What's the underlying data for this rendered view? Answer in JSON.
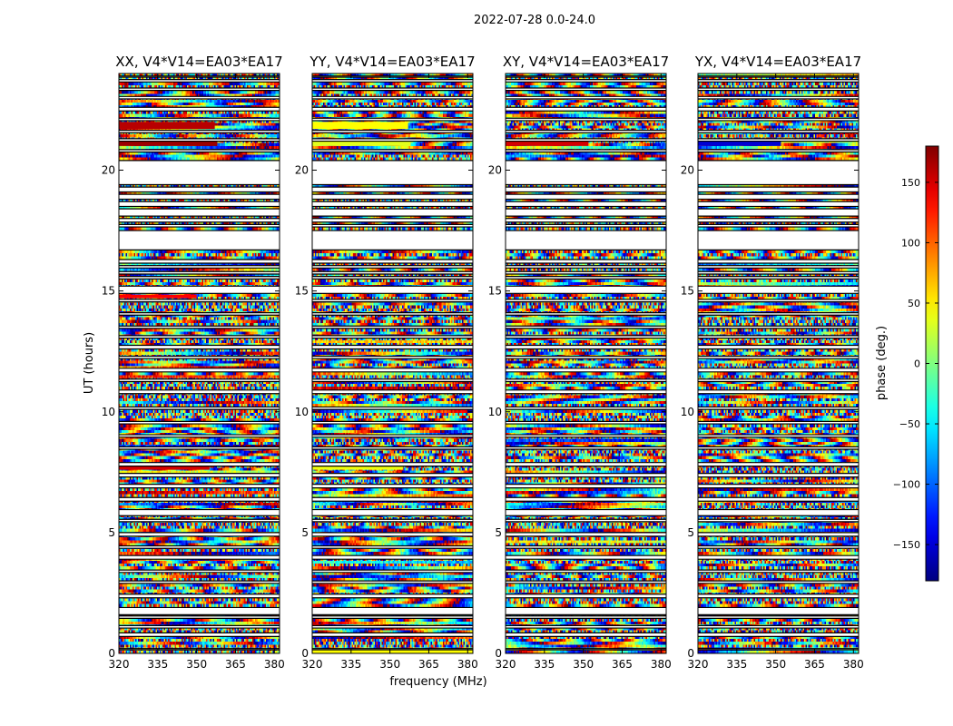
{
  "figure": {
    "suptitle": "2022-07-28 0.0-24.0",
    "ylabel": "UT (hours)",
    "xlabel": "frequency (MHz)",
    "colorbar_label": "phase (deg.)"
  },
  "chart_data": {
    "type": "heatmap",
    "colormap": "jet",
    "vrange": [
      -180,
      180
    ],
    "colorbar_ticks": [
      -150,
      -100,
      -50,
      0,
      50,
      100,
      150
    ],
    "x_range": [
      320,
      382
    ],
    "x_ticks": [
      320,
      335,
      350,
      365,
      380
    ],
    "y_range": [
      0,
      24
    ],
    "y_ticks": [
      0,
      5,
      10,
      15,
      20
    ],
    "flagged_intervals_hours": [
      [
        0.15,
        0.2
      ],
      [
        0.7,
        0.85
      ],
      [
        1.05,
        1.15
      ],
      [
        1.45,
        1.55
      ],
      [
        1.6,
        1.9
      ],
      [
        2.3,
        2.45
      ],
      [
        2.9,
        3.0
      ],
      [
        3.35,
        3.45
      ],
      [
        3.9,
        4.05
      ],
      [
        4.35,
        4.45
      ],
      [
        4.85,
        5.0
      ],
      [
        5.45,
        5.55
      ],
      [
        5.7,
        5.95
      ],
      [
        6.3,
        6.45
      ],
      [
        6.85,
        7.0
      ],
      [
        7.3,
        7.45
      ],
      [
        7.75,
        7.9
      ],
      [
        8.45,
        8.55
      ],
      [
        8.95,
        9.05
      ],
      [
        9.5,
        9.6
      ],
      [
        10.1,
        10.2
      ],
      [
        10.75,
        10.9
      ],
      [
        11.25,
        11.35
      ],
      [
        11.65,
        11.8
      ],
      [
        12.2,
        12.3
      ],
      [
        12.6,
        12.75
      ],
      [
        13.05,
        13.15
      ],
      [
        13.45,
        13.55
      ],
      [
        14.0,
        14.1
      ],
      [
        14.55,
        14.65
      ],
      [
        14.9,
        15.2
      ],
      [
        15.5,
        15.6
      ],
      [
        15.7,
        15.8
      ],
      [
        15.95,
        16.05
      ],
      [
        16.15,
        16.3
      ],
      [
        16.7,
        17.5
      ],
      [
        17.65,
        17.75
      ],
      [
        17.85,
        18.0
      ],
      [
        18.1,
        18.4
      ],
      [
        18.5,
        18.7
      ],
      [
        18.8,
        19.0
      ],
      [
        19.1,
        19.3
      ],
      [
        19.4,
        20.4
      ],
      [
        20.75,
        20.85
      ],
      [
        21.2,
        21.3
      ],
      [
        21.55,
        21.65
      ],
      [
        22.05,
        22.15
      ],
      [
        22.45,
        22.6
      ],
      [
        22.95,
        23.05
      ],
      [
        23.3,
        23.4
      ],
      [
        23.65,
        23.75
      ],
      [
        23.85,
        23.9
      ]
    ],
    "panels": [
      {
        "title": "XX, V4*V14=EA03*EA17",
        "stripes": [
          {
            "band": [
              21.0,
              21.2
            ],
            "value": 170,
            "to_mhz": 358
          },
          {
            "band": [
              21.7,
              22.0
            ],
            "value": 160,
            "to_mhz": 357
          },
          {
            "band": [
              7.6,
              7.75
            ],
            "value": 150,
            "to_mhz": 355
          },
          {
            "band": [
              14.7,
              14.85
            ],
            "value": 135,
            "to_mhz": 350
          }
        ]
      },
      {
        "title": "YY, V4*V14=EA03*EA17",
        "stripes": [
          {
            "band": [
              21.0,
              21.2
            ],
            "value": 35,
            "to_mhz": 358
          },
          {
            "band": [
              21.7,
              22.0
            ],
            "value": 45,
            "to_mhz": 357
          },
          {
            "band": [
              7.6,
              7.75
            ],
            "value": 40,
            "to_mhz": 355
          },
          {
            "band": [
              0.0,
              0.15
            ],
            "value": 45,
            "to_mhz": 382
          }
        ]
      },
      {
        "title": "XY, V4*V14=EA03*EA17",
        "stripes": [
          {
            "band": [
              21.0,
              21.2
            ],
            "value": 150,
            "to_mhz": 352
          }
        ]
      },
      {
        "title": "YX, V4*V14=EA03*EA17",
        "stripes": [
          {
            "band": [
              21.0,
              21.2
            ],
            "value": -150,
            "to_mhz": 352
          }
        ]
      }
    ]
  }
}
